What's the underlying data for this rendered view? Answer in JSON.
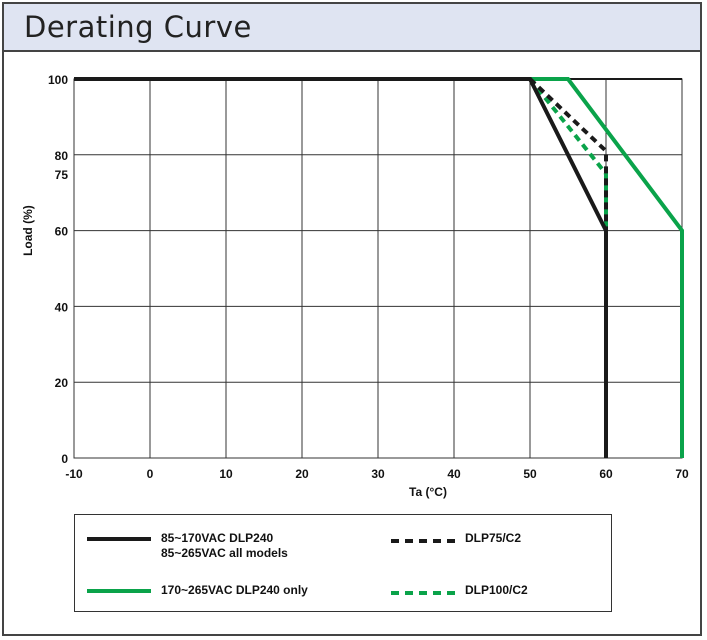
{
  "title": "Derating Curve",
  "chart_data": {
    "type": "line",
    "xlabel": "Ta (°C)",
    "ylabel": "Load (%)",
    "xlim": [
      -10,
      70
    ],
    "ylim": [
      0,
      100
    ],
    "x_ticks": [
      -10,
      0,
      10,
      20,
      30,
      40,
      50,
      60,
      70
    ],
    "y_ticks": [
      0,
      20,
      40,
      60,
      75,
      80,
      100
    ],
    "grid_x": [
      -10,
      0,
      10,
      20,
      30,
      40,
      50,
      60,
      70
    ],
    "grid_y": [
      0,
      20,
      40,
      60,
      80,
      100
    ],
    "grid": true,
    "series": [
      {
        "name": "85~170VAC DLP240\n85~265VAC all models",
        "color": "#1a1a1a",
        "style": "solid",
        "x": [
          -10,
          50,
          60,
          60
        ],
        "y": [
          100,
          100,
          60,
          0
        ]
      },
      {
        "name": "170~265VAC DLP240 only",
        "color": "#0aa34a",
        "style": "solid",
        "x": [
          50,
          55,
          70,
          70
        ],
        "y": [
          100,
          100,
          60,
          0
        ]
      },
      {
        "name": "DLP75/C2",
        "color": "#1a1a1a",
        "style": "dashed",
        "x": [
          50,
          60,
          60
        ],
        "y": [
          100,
          81,
          60
        ]
      },
      {
        "name": "DLP100/C2",
        "color": "#0aa34a",
        "style": "dashed",
        "x": [
          50,
          60,
          60
        ],
        "y": [
          100,
          75,
          60
        ]
      }
    ],
    "legend_placement": "bottom"
  }
}
